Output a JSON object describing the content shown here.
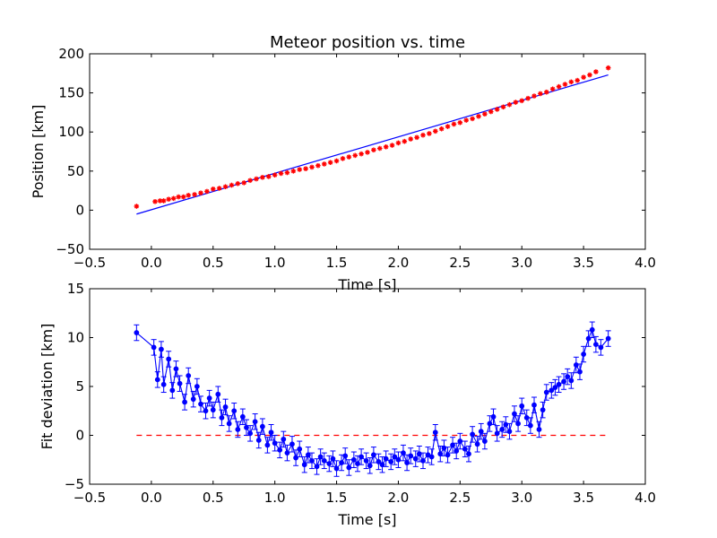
{
  "chart_data": [
    {
      "type": "scatter",
      "title": "Meteor position vs. time",
      "xlabel": "Time [s]",
      "ylabel": "Position [km]",
      "xlim": [
        -0.5,
        4.0
      ],
      "ylim": [
        -50,
        200
      ],
      "xticks": [
        -0.5,
        0.0,
        0.5,
        1.0,
        1.5,
        2.0,
        2.5,
        3.0,
        3.5,
        4.0
      ],
      "xtick_labels": [
        "−0.5",
        "0.0",
        "0.5",
        "1.0",
        "1.5",
        "2.0",
        "2.5",
        "3.0",
        "3.5",
        "4.0"
      ],
      "yticks": [
        -50,
        0,
        50,
        100,
        150,
        200
      ],
      "ytick_labels": [
        "−50",
        "0",
        "50",
        "100",
        "150",
        "200"
      ],
      "grid": false,
      "colors": {
        "points": "#ff0000",
        "fit_line": "#0000ff"
      },
      "fit_line": {
        "x": [
          -0.12,
          3.7
        ],
        "y": [
          -5,
          173
        ]
      },
      "series": [
        {
          "marker": "asterisk",
          "x": [
            -0.12,
            0.03,
            0.07,
            0.1,
            0.14,
            0.18,
            0.22,
            0.26,
            0.3,
            0.35,
            0.4,
            0.45,
            0.5,
            0.55,
            0.6,
            0.65,
            0.7,
            0.75,
            0.8,
            0.85,
            0.9,
            0.95,
            1.0,
            1.05,
            1.1,
            1.15,
            1.2,
            1.25,
            1.3,
            1.35,
            1.4,
            1.45,
            1.5,
            1.55,
            1.6,
            1.65,
            1.7,
            1.75,
            1.8,
            1.85,
            1.9,
            1.95,
            2.0,
            2.05,
            2.1,
            2.15,
            2.2,
            2.25,
            2.3,
            2.35,
            2.4,
            2.45,
            2.5,
            2.55,
            2.6,
            2.65,
            2.7,
            2.75,
            2.8,
            2.85,
            2.9,
            2.95,
            3.0,
            3.05,
            3.1,
            3.15,
            3.2,
            3.25,
            3.3,
            3.35,
            3.4,
            3.45,
            3.5,
            3.55,
            3.6,
            3.7
          ],
          "y": [
            5,
            11,
            12,
            12,
            14,
            15,
            17,
            17,
            19,
            20,
            22,
            24,
            27,
            28,
            30,
            32,
            34,
            35,
            38,
            40,
            42,
            43,
            45,
            47,
            48,
            50,
            52,
            53,
            55,
            57,
            59,
            61,
            63,
            66,
            68,
            70,
            72,
            74,
            77,
            79,
            81,
            83,
            86,
            88,
            91,
            93,
            96,
            98,
            101,
            104,
            107,
            110,
            112,
            115,
            117,
            120,
            123,
            126,
            129,
            132,
            135,
            138,
            140,
            143,
            146,
            149,
            151,
            155,
            158,
            161,
            164,
            166,
            170,
            173,
            177,
            182
          ]
        }
      ]
    },
    {
      "type": "line",
      "title": "",
      "xlabel": "Time [s]",
      "ylabel": "Fit deviation [km]",
      "xlim": [
        -0.5,
        4.0
      ],
      "ylim": [
        -5,
        15
      ],
      "xticks": [
        -0.5,
        0.0,
        0.5,
        1.0,
        1.5,
        2.0,
        2.5,
        3.0,
        3.5,
        4.0
      ],
      "xtick_labels": [
        "−0.5",
        "0.0",
        "0.5",
        "1.0",
        "1.5",
        "2.0",
        "2.5",
        "3.0",
        "3.5",
        "4.0"
      ],
      "yticks": [
        -5,
        0,
        5,
        10,
        15
      ],
      "ytick_labels": [
        "−5",
        "0",
        "5",
        "10",
        "15"
      ],
      "grid": false,
      "colors": {
        "series": "#0000ff",
        "zero_line": "#ff0000"
      },
      "zero_line": {
        "x": [
          -0.12,
          3.7
        ],
        "y": [
          0,
          0
        ],
        "style": "dashed"
      },
      "series": [
        {
          "marker": "circle",
          "error_bar": 0.8,
          "x": [
            -0.12,
            0.02,
            0.05,
            0.08,
            0.1,
            0.14,
            0.17,
            0.2,
            0.23,
            0.27,
            0.3,
            0.34,
            0.37,
            0.4,
            0.44,
            0.47,
            0.5,
            0.54,
            0.57,
            0.6,
            0.63,
            0.67,
            0.7,
            0.74,
            0.77,
            0.8,
            0.84,
            0.87,
            0.9,
            0.94,
            0.97,
            1.0,
            1.04,
            1.07,
            1.1,
            1.14,
            1.17,
            1.2,
            1.24,
            1.27,
            1.3,
            1.34,
            1.37,
            1.4,
            1.44,
            1.47,
            1.5,
            1.54,
            1.57,
            1.6,
            1.64,
            1.67,
            1.7,
            1.74,
            1.77,
            1.8,
            1.84,
            1.87,
            1.9,
            1.94,
            1.97,
            2.0,
            2.04,
            2.07,
            2.1,
            2.14,
            2.17,
            2.2,
            2.24,
            2.27,
            2.3,
            2.34,
            2.37,
            2.4,
            2.44,
            2.47,
            2.5,
            2.54,
            2.57,
            2.6,
            2.64,
            2.67,
            2.7,
            2.74,
            2.77,
            2.8,
            2.84,
            2.87,
            2.9,
            2.94,
            2.97,
            3.0,
            3.04,
            3.07,
            3.1,
            3.14,
            3.17,
            3.2,
            3.24,
            3.27,
            3.3,
            3.34,
            3.37,
            3.4,
            3.44,
            3.47,
            3.5,
            3.54,
            3.57,
            3.6,
            3.64,
            3.7
          ],
          "y": [
            10.5,
            9.0,
            5.7,
            8.8,
            5.2,
            7.8,
            4.6,
            6.8,
            5.3,
            3.4,
            6.1,
            3.7,
            5.0,
            3.2,
            2.5,
            3.8,
            2.6,
            4.2,
            1.8,
            2.9,
            1.2,
            2.5,
            0.6,
            1.9,
            0.8,
            0.2,
            1.4,
            -0.5,
            0.9,
            -1.0,
            0.3,
            -0.8,
            -1.5,
            -0.4,
            -1.8,
            -0.9,
            -2.3,
            -1.4,
            -3.0,
            -2.0,
            -2.6,
            -3.2,
            -2.2,
            -2.6,
            -2.9,
            -2.4,
            -3.4,
            -2.8,
            -2.1,
            -3.3,
            -2.5,
            -2.9,
            -2.2,
            -2.6,
            -3.1,
            -2.0,
            -2.7,
            -3.0,
            -2.4,
            -2.7,
            -2.2,
            -2.5,
            -1.8,
            -2.8,
            -2.1,
            -2.4,
            -1.9,
            -2.6,
            -2.0,
            -2.2,
            0.3,
            -1.9,
            -1.3,
            -2.0,
            -1.0,
            -1.6,
            -0.6,
            -1.4,
            -1.9,
            0.1,
            -0.9,
            0.4,
            -0.6,
            1.2,
            1.9,
            0.2,
            0.6,
            1.1,
            0.4,
            2.2,
            1.2,
            3.0,
            1.8,
            1.0,
            3.1,
            0.6,
            2.6,
            4.4,
            4.6,
            4.9,
            5.2,
            5.5,
            6.0,
            5.6,
            7.2,
            6.5,
            8.3,
            9.9,
            10.8,
            9.3,
            9.0,
            9.9
          ]
        }
      ]
    }
  ]
}
